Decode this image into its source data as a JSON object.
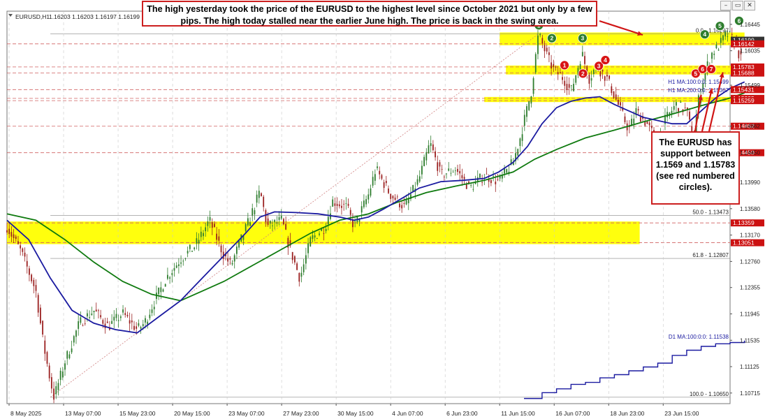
{
  "window": {
    "symbol_title": "EURUSD,H1",
    "ohlc_readout": "1.16203 1.16203 1.16197 1.16199",
    "minimize": "–",
    "restore": "▭",
    "close": "✕"
  },
  "annotations": {
    "top_callout": "The high yesterday took the price of the EURUSD to the highest level since October 2021 but only by a few pips. The high today stalled near the earlier June high.  The price is back in the swing area.",
    "side_callout": "The EURUSD has support between 1.1569 and 1.15783 (see red numbered circles)."
  },
  "colors": {
    "price_tag_red": "#cc1111",
    "price_tag_dark": "#333333",
    "zone_yellow": "#ffff00",
    "ma100_blue": "#1a1aa0",
    "ma200_green": "#0f7a0f",
    "circle_green": "#2e7d2e",
    "circle_red": "#d81515",
    "candle_up": "#2e7d2e",
    "candle_down": "#9b2020",
    "line_red": "#d06060"
  },
  "chart_data": {
    "type": "candlestick",
    "symbol": "EURUSD",
    "timeframe": "H1",
    "ylim": [
      1.1055,
      1.1665
    ],
    "y_ticks": [
      "1.16445",
      "1.16035",
      "1.15499",
      "1.14862",
      "1.14450",
      "1.13990",
      "1.13580",
      "1.13170",
      "1.12760",
      "1.12355",
      "1.11945",
      "1.11535",
      "1.11125",
      "1.10715"
    ],
    "x_ticks": [
      "8 May 2025",
      "13 May 07:00",
      "15 May 23:00",
      "20 May 15:00",
      "23 May 07:00",
      "27 May 23:00",
      "30 May 15:00",
      "4 Jun 07:00",
      "6 Jun 23:00",
      "11 Jun 15:00",
      "16 Jun 07:00",
      "18 Jun 23:00",
      "23 Jun 15:00"
    ],
    "price_tags": [
      {
        "text": "1.16297",
        "value": 1.16297,
        "style": "plain"
      },
      {
        "text": "1.16199",
        "value": 1.16199,
        "style": "dark"
      },
      {
        "text": "1.16142",
        "value": 1.16142,
        "style": "red"
      },
      {
        "text": "1.15783",
        "value": 1.15783,
        "style": "red"
      },
      {
        "text": "1.15688",
        "value": 1.15688,
        "style": "red"
      },
      {
        "text": "1.15431",
        "value": 1.15431,
        "style": "red"
      },
      {
        "text": "1.15295",
        "value": 1.15295,
        "style": "red"
      },
      {
        "text": "1.15259",
        "value": 1.15259,
        "style": "red"
      },
      {
        "text": "1.14862",
        "value": 1.14862,
        "style": "red"
      },
      {
        "text": "1.14450",
        "value": 1.1445,
        "style": "red"
      },
      {
        "text": "1.13359",
        "value": 1.13359,
        "style": "red"
      },
      {
        "text": "1.13051",
        "value": 1.13051,
        "style": "red"
      }
    ],
    "horizontal_red_lines": [
      1.16142,
      1.15783,
      1.15688,
      1.15431,
      1.15295,
      1.15259,
      1.14862,
      1.1445,
      1.13359,
      1.13051
    ],
    "fib_levels": [
      {
        "label": "0.0 - 1.16297",
        "value": 1.16297
      },
      {
        "label": "50.0 - 1.13473",
        "value": 1.13473
      },
      {
        "label": "61.8 - 1.12807",
        "value": 1.12807
      },
      {
        "label": "100.0 - 1.10650",
        "value": 1.1065
      }
    ],
    "ma_labels": [
      {
        "label": "H1 MA:100:0:0: 1.15499",
        "value": 1.15499
      },
      {
        "label": "H1 MA:200:0:0: 1.15367",
        "value": 1.15367
      },
      {
        "label": "D1 MA:100:0:0: 1.11538",
        "value": 1.11538
      }
    ],
    "zones": [
      {
        "from": 1.16142,
        "to": 1.16297,
        "start": "11 Jun 15:00",
        "end": "25 Jun"
      },
      {
        "from": 1.15688,
        "to": 1.15783,
        "start": "12 Jun",
        "end": "25 Jun"
      },
      {
        "from": 1.15259,
        "to": 1.15295,
        "start": "11 Jun",
        "end": "25 Jun"
      },
      {
        "from": 1.13051,
        "to": 1.13359,
        "start": "8 May 2025",
        "end": "24 Jun"
      }
    ],
    "swing_circles": [
      {
        "n": "1",
        "color": "green",
        "x": 0.7355,
        "y": 1.1643
      },
      {
        "n": "2",
        "color": "green",
        "x": 0.7535,
        "y": 1.1623
      },
      {
        "n": "3",
        "color": "green",
        "x": 0.796,
        "y": 1.1623
      },
      {
        "n": "4",
        "color": "green",
        "x": 0.965,
        "y": 1.1629
      },
      {
        "n": "5",
        "color": "green",
        "x": 0.986,
        "y": 1.1642
      },
      {
        "n": "6",
        "color": "green",
        "x": 1.0125,
        "y": 1.165
      },
      {
        "n": "1",
        "color": "red",
        "x": 0.771,
        "y": 1.1581
      },
      {
        "n": "2",
        "color": "red",
        "x": 0.7965,
        "y": 1.1568
      },
      {
        "n": "3",
        "color": "red",
        "x": 0.8185,
        "y": 1.158
      },
      {
        "n": "4",
        "color": "red",
        "x": 0.8275,
        "y": 1.1589
      },
      {
        "n": "5",
        "color": "red",
        "x": 0.9525,
        "y": 1.1568
      },
      {
        "n": "6",
        "color": "red",
        "x": 0.962,
        "y": 1.1575
      },
      {
        "n": "7",
        "color": "red",
        "x": 0.974,
        "y": 1.1575
      }
    ],
    "price_path": [
      [
        0.0,
        1.133
      ],
      [
        0.02,
        1.129
      ],
      [
        0.04,
        1.123
      ],
      [
        0.05,
        1.115
      ],
      [
        0.06,
        1.109
      ],
      [
        0.065,
        1.1065
      ],
      [
        0.08,
        1.112
      ],
      [
        0.1,
        1.118
      ],
      [
        0.12,
        1.12
      ],
      [
        0.14,
        1.1175
      ],
      [
        0.16,
        1.1195
      ],
      [
        0.18,
        1.117
      ],
      [
        0.19,
        1.118
      ],
      [
        0.2,
        1.1205
      ],
      [
        0.22,
        1.125
      ],
      [
        0.24,
        1.128
      ],
      [
        0.26,
        1.13
      ],
      [
        0.28,
        1.134
      ],
      [
        0.3,
        1.1285
      ],
      [
        0.31,
        1.127
      ],
      [
        0.32,
        1.13
      ],
      [
        0.335,
        1.134
      ],
      [
        0.35,
        1.1385
      ],
      [
        0.36,
        1.133
      ],
      [
        0.38,
        1.134
      ],
      [
        0.39,
        1.13
      ],
      [
        0.405,
        1.125
      ],
      [
        0.42,
        1.131
      ],
      [
        0.44,
        1.133
      ],
      [
        0.45,
        1.137
      ],
      [
        0.47,
        1.136
      ],
      [
        0.48,
        1.133
      ],
      [
        0.5,
        1.138
      ],
      [
        0.51,
        1.142
      ],
      [
        0.53,
        1.138
      ],
      [
        0.55,
        1.136
      ],
      [
        0.57,
        1.1405
      ],
      [
        0.585,
        1.146
      ],
      [
        0.6,
        1.141
      ],
      [
        0.62,
        1.142
      ],
      [
        0.64,
        1.139
      ],
      [
        0.66,
        1.141
      ],
      [
        0.68,
        1.14
      ],
      [
        0.7,
        1.143
      ],
      [
        0.71,
        1.147
      ],
      [
        0.725,
        1.154
      ],
      [
        0.735,
        1.163
      ],
      [
        0.745,
        1.16
      ],
      [
        0.755,
        1.1575
      ],
      [
        0.77,
        1.156
      ],
      [
        0.78,
        1.154
      ],
      [
        0.795,
        1.16
      ],
      [
        0.805,
        1.156
      ],
      [
        0.815,
        1.158
      ],
      [
        0.83,
        1.156
      ],
      [
        0.845,
        1.152
      ],
      [
        0.86,
        1.148
      ],
      [
        0.87,
        1.151
      ],
      [
        0.885,
        1.149
      ],
      [
        0.9,
        1.146
      ],
      [
        0.91,
        1.1495
      ],
      [
        0.925,
        1.152
      ],
      [
        0.94,
        1.151
      ],
      [
        0.95,
        1.146
      ],
      [
        0.955,
        1.152
      ],
      [
        0.965,
        1.157
      ],
      [
        0.975,
        1.16
      ],
      [
        0.985,
        1.1612
      ],
      [
        0.995,
        1.163
      ],
      [
        1.005,
        1.162
      ],
      [
        1.015,
        1.159
      ]
    ],
    "ma100_path": [
      [
        0.0,
        1.134
      ],
      [
        0.03,
        1.131
      ],
      [
        0.06,
        1.125
      ],
      [
        0.09,
        1.12
      ],
      [
        0.12,
        1.118
      ],
      [
        0.15,
        1.117
      ],
      [
        0.18,
        1.1165
      ],
      [
        0.21,
        1.119
      ],
      [
        0.24,
        1.1215
      ],
      [
        0.27,
        1.125
      ],
      [
        0.3,
        1.1285
      ],
      [
        0.33,
        1.132
      ],
      [
        0.35,
        1.1345
      ],
      [
        0.37,
        1.1353
      ],
      [
        0.4,
        1.1352
      ],
      [
        0.43,
        1.135
      ],
      [
        0.46,
        1.1345
      ],
      [
        0.48,
        1.134
      ],
      [
        0.5,
        1.1345
      ],
      [
        0.52,
        1.1357
      ],
      [
        0.54,
        1.137
      ],
      [
        0.57,
        1.139
      ],
      [
        0.6,
        1.14
      ],
      [
        0.63,
        1.1402
      ],
      [
        0.66,
        1.1405
      ],
      [
        0.68,
        1.1415
      ],
      [
        0.7,
        1.143
      ],
      [
        0.72,
        1.1455
      ],
      [
        0.74,
        1.149
      ],
      [
        0.76,
        1.1515
      ],
      [
        0.78,
        1.1525
      ],
      [
        0.8,
        1.153
      ],
      [
        0.82,
        1.1532
      ],
      [
        0.84,
        1.152
      ],
      [
        0.86,
        1.151
      ],
      [
        0.88,
        1.15
      ],
      [
        0.9,
        1.1495
      ],
      [
        0.92,
        1.149
      ],
      [
        0.94,
        1.149
      ],
      [
        0.96,
        1.151
      ],
      [
        0.98,
        1.153
      ],
      [
        1.0,
        1.1545
      ],
      [
        1.02,
        1.1555
      ]
    ],
    "ma200_path": [
      [
        0.0,
        1.135
      ],
      [
        0.04,
        1.134
      ],
      [
        0.08,
        1.131
      ],
      [
        0.12,
        1.1275
      ],
      [
        0.16,
        1.1245
      ],
      [
        0.2,
        1.1225
      ],
      [
        0.24,
        1.1215
      ],
      [
        0.27,
        1.123
      ],
      [
        0.3,
        1.1245
      ],
      [
        0.34,
        1.127
      ],
      [
        0.38,
        1.1295
      ],
      [
        0.42,
        1.132
      ],
      [
        0.46,
        1.134
      ],
      [
        0.5,
        1.135
      ],
      [
        0.54,
        1.1368
      ],
      [
        0.58,
        1.1383
      ],
      [
        0.62,
        1.1393
      ],
      [
        0.66,
        1.1402
      ],
      [
        0.7,
        1.1415
      ],
      [
        0.73,
        1.1435
      ],
      [
        0.76,
        1.145
      ],
      [
        0.8,
        1.1468
      ],
      [
        0.84,
        1.148
      ],
      [
        0.88,
        1.1493
      ],
      [
        0.92,
        1.1505
      ],
      [
        0.96,
        1.1518
      ],
      [
        1.0,
        1.153
      ],
      [
        1.02,
        1.1538
      ]
    ],
    "d1_ma100_path": [
      [
        0.715,
        1.1063
      ],
      [
        0.74,
        1.1072
      ],
      [
        0.76,
        1.1078
      ],
      [
        0.78,
        1.1085
      ],
      [
        0.8,
        1.1088
      ],
      [
        0.82,
        1.1095
      ],
      [
        0.84,
        1.11
      ],
      [
        0.86,
        1.1106
      ],
      [
        0.88,
        1.1112
      ],
      [
        0.9,
        1.1118
      ],
      [
        0.92,
        1.113
      ],
      [
        0.94,
        1.1138
      ],
      [
        0.96,
        1.1144
      ],
      [
        0.98,
        1.1148
      ],
      [
        1.0,
        1.115
      ],
      [
        1.02,
        1.1153
      ]
    ]
  }
}
